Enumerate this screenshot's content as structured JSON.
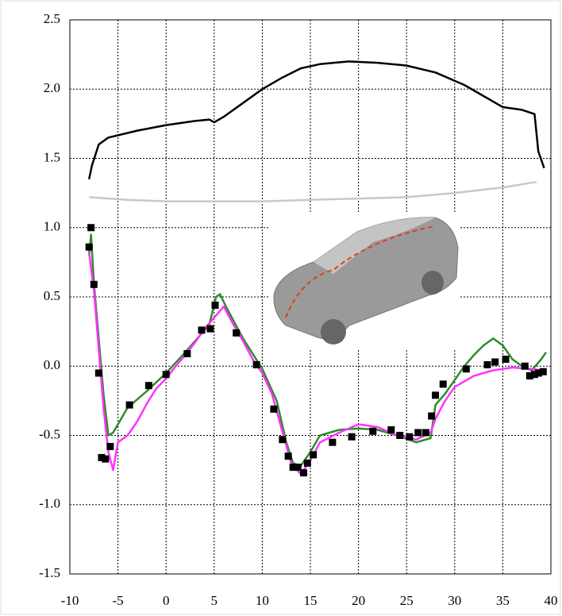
{
  "chart_data": {
    "type": "line",
    "xlim": [
      -10,
      40
    ],
    "xticks": [
      -10,
      -5,
      0,
      5,
      10,
      15,
      20,
      25,
      30,
      35,
      40
    ],
    "ylim": [
      -1.5,
      2.5
    ],
    "yticks": [
      -1.5,
      {
        "value": -1,
        "label": "-1.0"
      },
      -0.5,
      {
        "value": 0,
        "label": "0.0"
      },
      0.5,
      {
        "value": 1,
        "label": "1.0"
      },
      1.5,
      {
        "value": 2,
        "label": "2.0"
      },
      2.5
    ],
    "grid": true,
    "series": [
      {
        "color": "#000000",
        "x": [
          -8,
          -7.7,
          -7,
          -6,
          -3,
          0,
          3,
          4.5,
          5,
          6,
          8,
          10,
          12,
          14,
          16,
          19,
          22,
          25,
          28,
          31,
          33,
          35,
          37,
          38.3,
          38.7,
          39.3
        ],
        "values": [
          1.35,
          1.45,
          1.6,
          1.65,
          1.7,
          1.74,
          1.77,
          1.78,
          1.76,
          1.8,
          1.9,
          2.0,
          2.08,
          2.15,
          2.18,
          2.2,
          2.19,
          2.17,
          2.12,
          2.03,
          1.95,
          1.87,
          1.85,
          1.82,
          1.55,
          1.43
        ]
      },
      {
        "color": "#c8c8c8",
        "x": [
          -8,
          -4,
          0,
          5,
          10,
          15,
          20,
          25,
          30,
          35,
          38.5
        ],
        "values": [
          1.22,
          1.2,
          1.19,
          1.19,
          1.19,
          1.2,
          1.21,
          1.22,
          1.25,
          1.29,
          1.33
        ]
      },
      {
        "color": "#2e8b2e",
        "x": [
          -8,
          -7.8,
          -7.5,
          -6.5,
          -6,
          -5.5,
          -4,
          -2,
          0,
          2,
          3.5,
          4.5,
          5.2,
          5.6,
          6.3,
          8,
          10,
          11.5,
          12.5,
          13.2,
          14,
          15,
          16,
          18,
          20,
          22,
          24,
          26,
          27.5,
          28,
          29,
          30,
          31,
          32,
          33,
          34,
          35,
          36,
          37,
          38,
          39,
          39.5
        ],
        "values": [
          0.8,
          0.95,
          0.6,
          -0.2,
          -0.5,
          -0.48,
          -0.3,
          -0.18,
          -0.05,
          0.1,
          0.22,
          0.3,
          0.5,
          0.52,
          0.42,
          0.2,
          -0.02,
          -0.25,
          -0.55,
          -0.7,
          -0.72,
          -0.62,
          -0.5,
          -0.46,
          -0.45,
          -0.46,
          -0.5,
          -0.55,
          -0.52,
          -0.28,
          -0.2,
          -0.1,
          0.0,
          0.08,
          0.15,
          0.2,
          0.15,
          0.05,
          0.0,
          -0.03,
          0.05,
          0.1
        ]
      },
      {
        "color": "#ff33ff",
        "x": [
          -8,
          -7.5,
          -6.5,
          -6,
          -5.5,
          -5,
          -4,
          -3,
          -2,
          -1,
          0,
          1,
          2,
          3,
          4,
          5,
          6,
          7,
          8,
          9,
          10,
          11,
          12,
          13,
          14,
          15,
          16,
          18,
          20,
          22,
          24,
          26,
          27.5,
          28,
          29,
          30,
          32,
          34,
          36,
          38,
          39
        ],
        "values": [
          0.82,
          0.55,
          -0.3,
          -0.62,
          -0.75,
          -0.55,
          -0.5,
          -0.4,
          -0.27,
          -0.16,
          -0.09,
          0.0,
          0.08,
          0.17,
          0.27,
          0.35,
          0.43,
          0.3,
          0.18,
          0.05,
          -0.05,
          -0.2,
          -0.45,
          -0.7,
          -0.78,
          -0.68,
          -0.55,
          -0.48,
          -0.42,
          -0.44,
          -0.5,
          -0.53,
          -0.48,
          -0.38,
          -0.25,
          -0.15,
          -0.07,
          -0.03,
          -0.01,
          -0.02,
          -0.03
        ]
      },
      {
        "color": "#000000",
        "marker": "square",
        "x": [
          -8,
          -7.8,
          -7.5,
          -7,
          -6.7,
          -6.3,
          -5.8,
          -3.8,
          -1.8,
          0,
          2.2,
          3.7,
          4.6,
          5.1,
          7.3,
          9.4,
          11.2,
          12.1,
          12.7,
          13.2,
          13.7,
          14.3,
          14.7,
          15.3,
          17.3,
          19.3,
          21.5,
          23.4,
          24.3,
          25.3,
          26.2,
          27,
          27.6,
          28,
          28.8,
          31.2,
          33.4,
          34.2,
          35.3,
          37.3,
          37.8,
          38.3,
          38.7,
          39.2
        ],
        "values": [
          0.86,
          1.0,
          0.59,
          -0.05,
          -0.66,
          -0.67,
          -0.58,
          -0.28,
          -0.14,
          -0.06,
          0.09,
          0.26,
          0.27,
          0.44,
          0.24,
          0.01,
          -0.31,
          -0.53,
          -0.65,
          -0.73,
          -0.73,
          -0.77,
          -0.7,
          -0.64,
          -0.55,
          -0.51,
          -0.47,
          -0.46,
          -0.5,
          -0.51,
          -0.48,
          -0.48,
          -0.36,
          -0.21,
          -0.13,
          -0.02,
          0.01,
          0.03,
          0.05,
          0.0,
          -0.07,
          -0.06,
          -0.05,
          -0.04
        ]
      }
    ]
  }
}
